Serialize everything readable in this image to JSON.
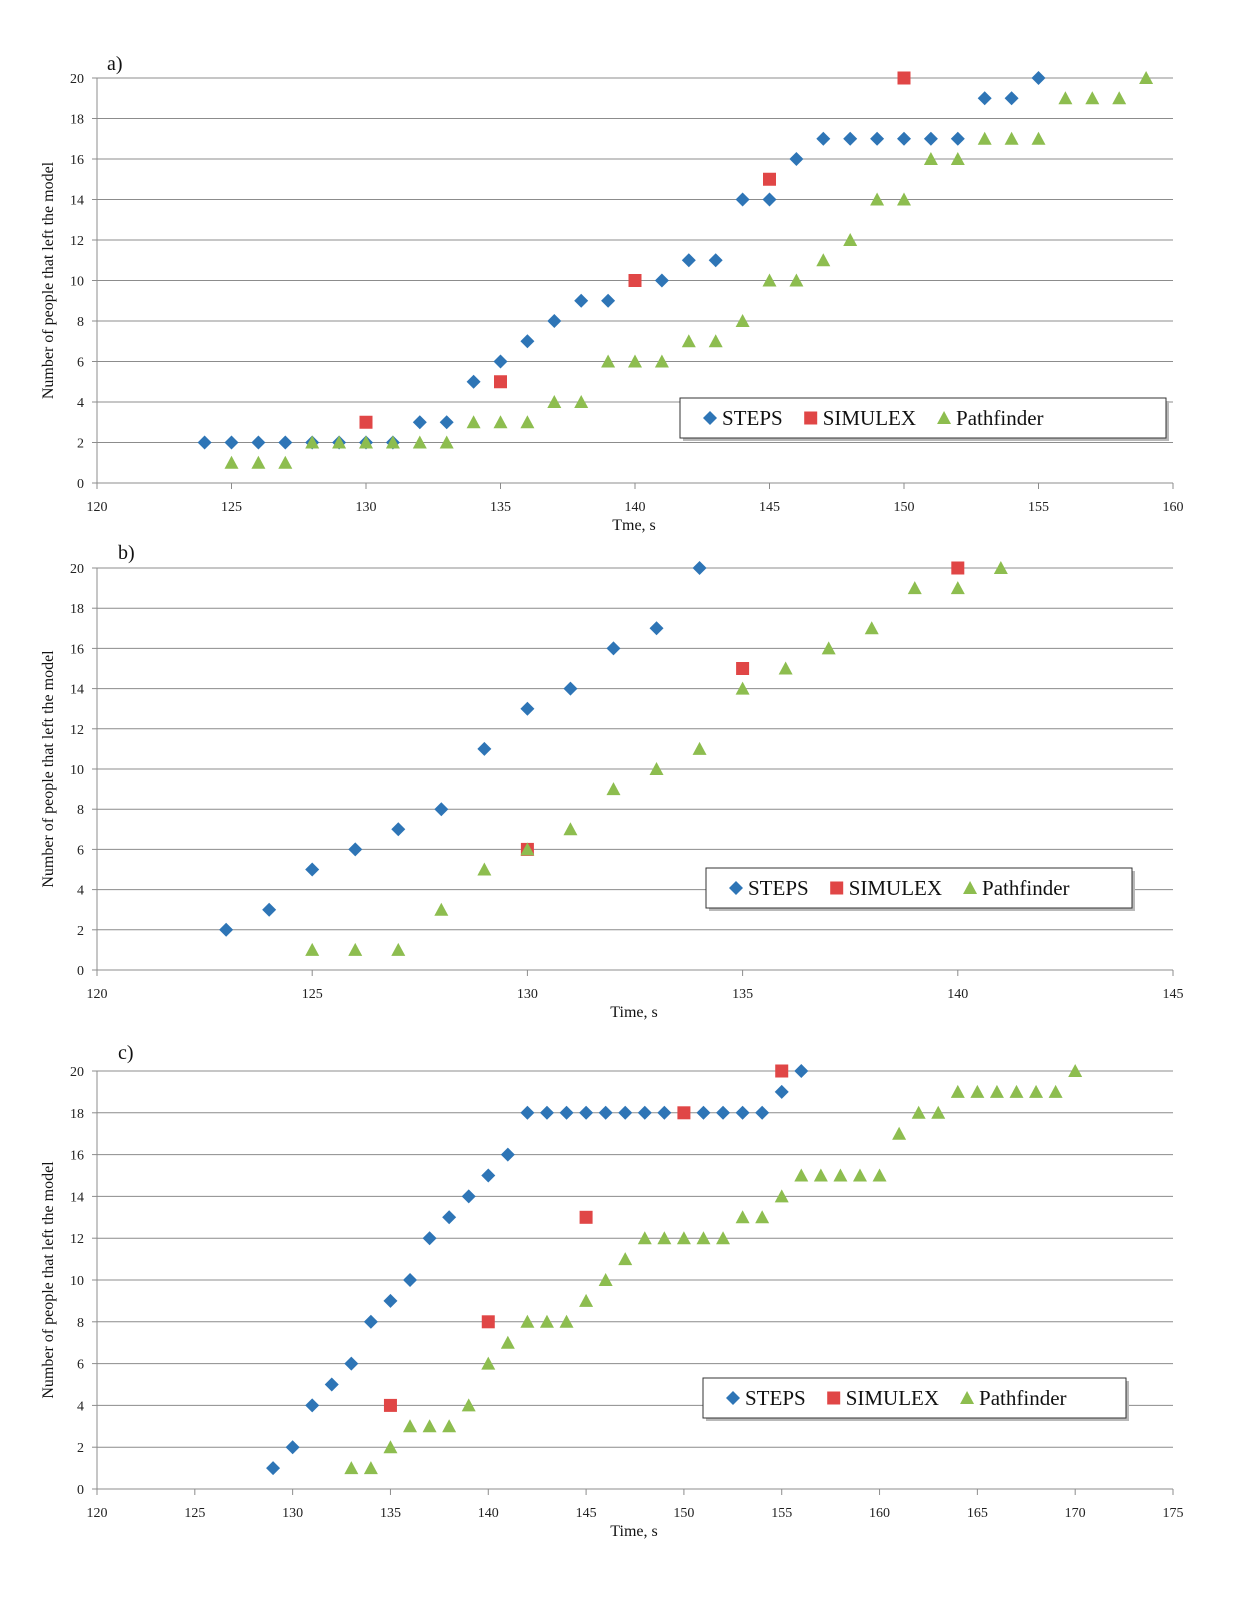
{
  "chart_data": [
    {
      "panel": "a)",
      "type": "scatter",
      "xlabel": "Tme, s",
      "ylabel": "Number of people that left the model",
      "xlim": [
        120,
        160
      ],
      "ylim": [
        0,
        20
      ],
      "xticks": [
        120,
        125,
        130,
        135,
        140,
        145,
        150,
        155,
        160
      ],
      "yticks": [
        0,
        2,
        4,
        6,
        8,
        10,
        12,
        14,
        16,
        18,
        20
      ],
      "legend": "bottom-right",
      "series": [
        {
          "name": "STEPS",
          "color": "#2e75b6",
          "marker": "diamond",
          "x": [
            124,
            125,
            126,
            127,
            128,
            129,
            130,
            131,
            132,
            133,
            134,
            135,
            136,
            137,
            138,
            139,
            141,
            142,
            143,
            144,
            145,
            146,
            147,
            148,
            149,
            150,
            151,
            152,
            153,
            154,
            155
          ],
          "y": [
            2,
            2,
            2,
            2,
            2,
            2,
            2,
            2,
            3,
            3,
            5,
            6,
            7,
            8,
            9,
            9,
            10,
            11,
            11,
            14,
            14,
            16,
            17,
            17,
            17,
            17,
            17,
            17,
            19,
            19,
            20
          ]
        },
        {
          "name": "SIMULEX",
          "color": "#e04646",
          "marker": "square",
          "x": [
            130,
            135,
            140,
            145,
            150
          ],
          "y": [
            3,
            5,
            10,
            15,
            20
          ]
        },
        {
          "name": "Pathfinder",
          "color": "#8dbd4f",
          "marker": "triangle",
          "x": [
            125,
            126,
            127,
            128,
            129,
            130,
            131,
            132,
            133,
            134,
            135,
            136,
            137,
            138,
            139,
            140,
            141,
            142,
            143,
            144,
            145,
            146,
            147,
            148,
            149,
            150,
            151,
            152,
            153,
            154,
            155,
            156,
            157,
            158,
            159
          ],
          "y": [
            1,
            1,
            1,
            2,
            2,
            2,
            2,
            2,
            2,
            3,
            3,
            3,
            4,
            4,
            6,
            6,
            6,
            7,
            7,
            8,
            10,
            10,
            11,
            12,
            14,
            14,
            16,
            16,
            17,
            17,
            17,
            19,
            19,
            19,
            20
          ]
        }
      ]
    },
    {
      "panel": "b)",
      "type": "scatter",
      "xlabel": "Time, s",
      "ylabel": "Number of people that left the model",
      "xlim": [
        120,
        145
      ],
      "ylim": [
        0,
        20
      ],
      "xticks": [
        120,
        125,
        130,
        135,
        140,
        145
      ],
      "yticks": [
        0,
        2,
        4,
        6,
        8,
        10,
        12,
        14,
        16,
        18,
        20
      ],
      "legend": "bottom-right",
      "series": [
        {
          "name": "STEPS",
          "color": "#2e75b6",
          "marker": "diamond",
          "x": [
            123,
            124,
            125,
            126,
            127,
            128,
            129,
            130,
            131,
            132,
            133,
            134
          ],
          "y": [
            2,
            3,
            5,
            6,
            7,
            8,
            11,
            13,
            14,
            16,
            17,
            20
          ]
        },
        {
          "name": "SIMULEX",
          "color": "#e04646",
          "marker": "square",
          "x": [
            130,
            135,
            140
          ],
          "y": [
            6,
            15,
            20
          ]
        },
        {
          "name": "Pathfinder",
          "color": "#8dbd4f",
          "marker": "triangle",
          "x": [
            125,
            126,
            127,
            128,
            129,
            130,
            131,
            132,
            133,
            134,
            135,
            136,
            137,
            138,
            139,
            140,
            141
          ],
          "y": [
            1,
            1,
            1,
            3,
            5,
            6,
            7,
            9,
            10,
            11,
            14,
            15,
            16,
            17,
            19,
            19,
            20
          ]
        }
      ]
    },
    {
      "panel": "c)",
      "type": "scatter",
      "xlabel": "Time, s",
      "ylabel": "Number of people that left the model",
      "xlim": [
        120,
        175
      ],
      "ylim": [
        0,
        20
      ],
      "xticks": [
        120,
        125,
        130,
        135,
        140,
        145,
        150,
        155,
        160,
        165,
        170,
        175
      ],
      "yticks": [
        0,
        2,
        4,
        6,
        8,
        10,
        12,
        14,
        16,
        18,
        20
      ],
      "legend": "bottom-right",
      "series": [
        {
          "name": "STEPS",
          "color": "#2e75b6",
          "marker": "diamond",
          "x": [
            129,
            130,
            131,
            132,
            133,
            134,
            135,
            136,
            137,
            138,
            139,
            140,
            141,
            142,
            143,
            144,
            145,
            146,
            147,
            148,
            149,
            151,
            152,
            153,
            154,
            155,
            156
          ],
          "y": [
            1,
            2,
            4,
            5,
            6,
            8,
            9,
            10,
            12,
            13,
            14,
            15,
            16,
            18,
            18,
            18,
            18,
            18,
            18,
            18,
            18,
            18,
            18,
            18,
            18,
            19,
            20
          ]
        },
        {
          "name": "SIMULEX",
          "color": "#e04646",
          "marker": "square",
          "x": [
            135,
            140,
            145,
            150,
            155
          ],
          "y": [
            4,
            8,
            13,
            18,
            20
          ]
        },
        {
          "name": "Pathfinder",
          "color": "#8dbd4f",
          "marker": "triangle",
          "x": [
            133,
            134,
            135,
            136,
            137,
            138,
            139,
            140,
            141,
            142,
            143,
            144,
            145,
            146,
            147,
            148,
            149,
            150,
            151,
            152,
            153,
            154,
            155,
            156,
            157,
            158,
            159,
            160,
            161,
            162,
            163,
            164,
            165,
            166,
            167,
            168,
            169,
            170
          ],
          "y": [
            1,
            1,
            2,
            3,
            3,
            3,
            4,
            6,
            7,
            8,
            8,
            8,
            9,
            10,
            11,
            12,
            12,
            12,
            12,
            12,
            13,
            13,
            14,
            15,
            15,
            15,
            15,
            15,
            17,
            18,
            18,
            19,
            19,
            19,
            19,
            19,
            19,
            20
          ]
        }
      ]
    }
  ]
}
